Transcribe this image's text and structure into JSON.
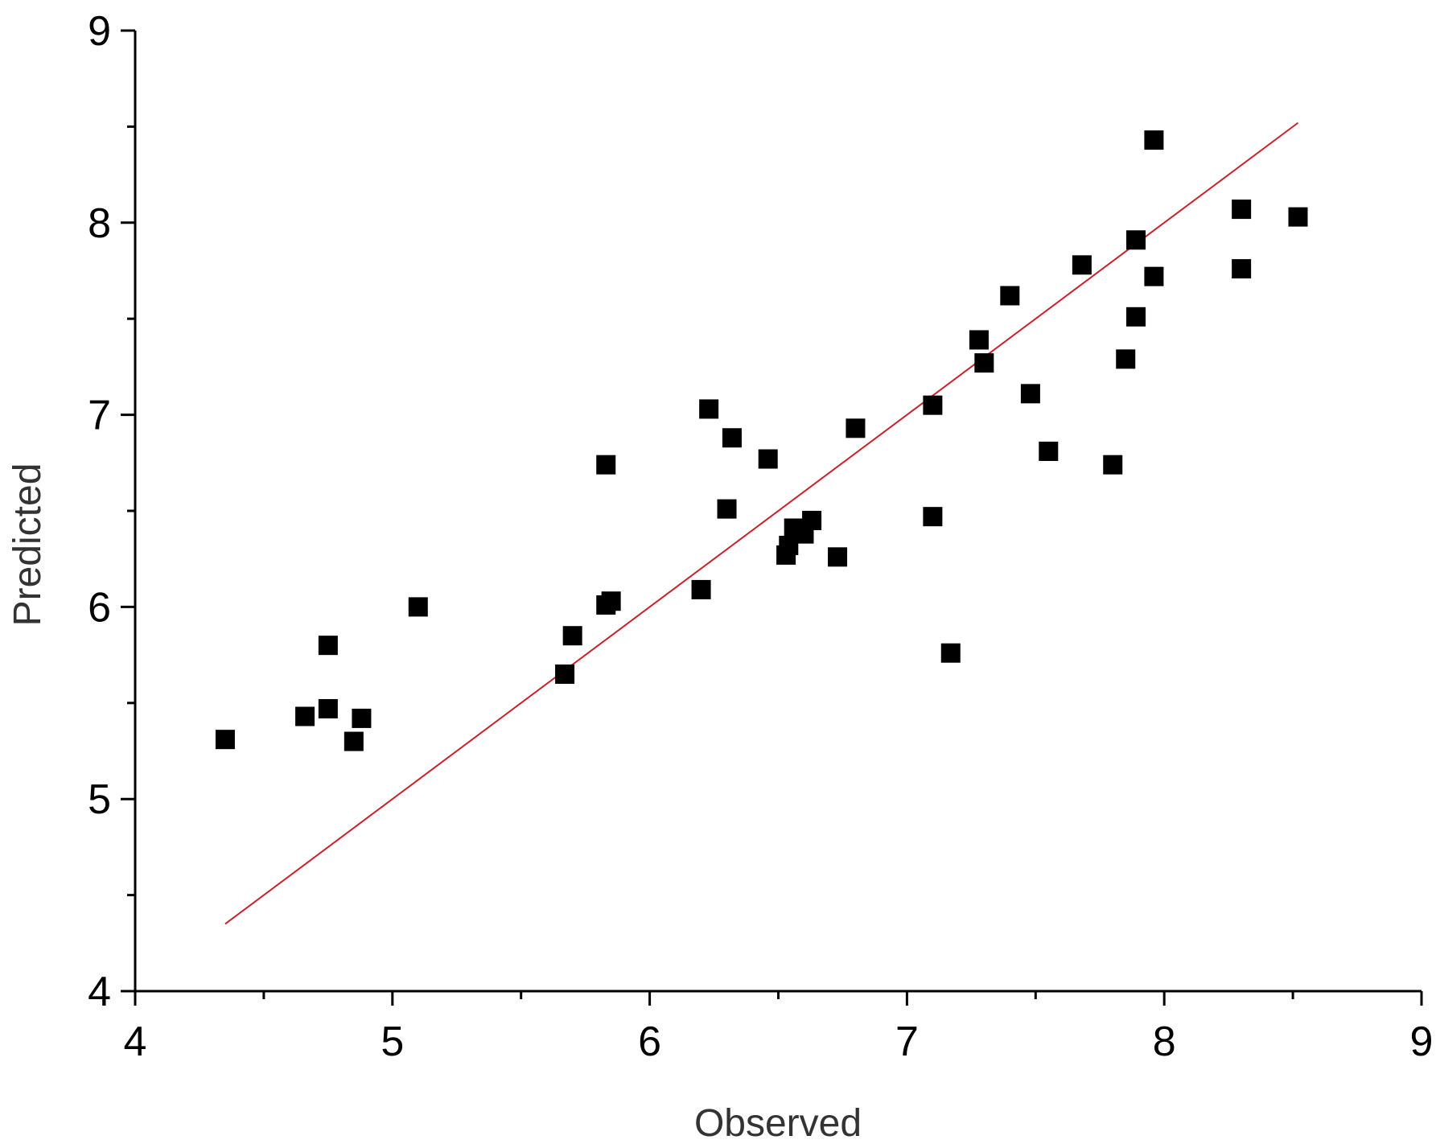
{
  "chart_data": {
    "type": "scatter",
    "title": "",
    "xlabel": "Observed",
    "ylabel": "Predicted",
    "xlim": [
      4,
      9
    ],
    "ylim": [
      4,
      9
    ],
    "x_ticks": [
      "4",
      "5",
      "6",
      "7",
      "8",
      "9"
    ],
    "y_ticks": [
      "4",
      "5",
      "6",
      "7",
      "8",
      "9"
    ],
    "minor_ticks": true,
    "grid": false,
    "legend": "none",
    "colors": {
      "points": "#000000",
      "fit_line": "#c8222a",
      "axes": "#000000"
    },
    "series": [
      {
        "marker": "square",
        "points": [
          [
            4.35,
            5.31
          ],
          [
            4.66,
            5.43
          ],
          [
            4.75,
            5.47
          ],
          [
            4.75,
            5.8
          ],
          [
            4.85,
            5.3
          ],
          [
            4.88,
            5.42
          ],
          [
            5.1,
            6.0
          ],
          [
            5.67,
            5.65
          ],
          [
            5.7,
            5.85
          ],
          [
            5.83,
            6.74
          ],
          [
            5.83,
            6.01
          ],
          [
            5.85,
            6.03
          ],
          [
            6.2,
            6.09
          ],
          [
            6.23,
            7.03
          ],
          [
            6.3,
            6.51
          ],
          [
            6.32,
            6.88
          ],
          [
            6.46,
            6.77
          ],
          [
            6.53,
            6.27
          ],
          [
            6.54,
            6.32
          ],
          [
            6.56,
            6.41
          ],
          [
            6.6,
            6.38
          ],
          [
            6.63,
            6.45
          ],
          [
            6.73,
            6.26
          ],
          [
            6.8,
            6.93
          ],
          [
            7.1,
            7.05
          ],
          [
            7.1,
            6.47
          ],
          [
            7.17,
            5.76
          ],
          [
            7.28,
            7.39
          ],
          [
            7.3,
            7.27
          ],
          [
            7.4,
            7.62
          ],
          [
            7.48,
            7.11
          ],
          [
            7.55,
            6.81
          ],
          [
            7.68,
            7.78
          ],
          [
            7.8,
            6.74
          ],
          [
            7.85,
            7.29
          ],
          [
            7.89,
            7.51
          ],
          [
            7.89,
            7.91
          ],
          [
            7.96,
            7.72
          ],
          [
            7.96,
            8.43
          ],
          [
            8.3,
            8.07
          ],
          [
            8.3,
            7.76
          ],
          [
            8.52,
            8.03
          ]
        ]
      }
    ],
    "fit_line": {
      "x": [
        4.35,
        8.52
      ],
      "y": [
        4.35,
        8.52
      ]
    }
  }
}
